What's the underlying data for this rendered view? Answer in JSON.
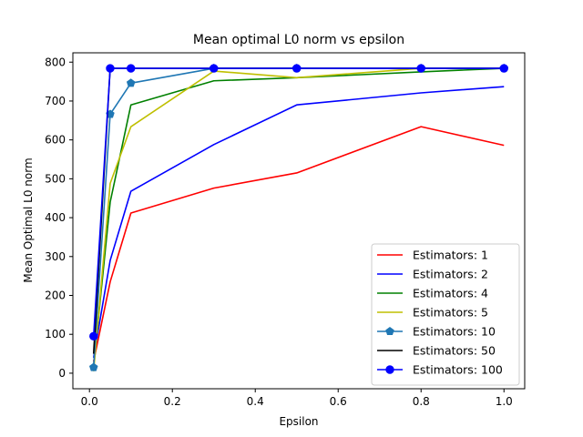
{
  "chart_data": {
    "type": "line",
    "title": "Mean optimal L0 norm vs epsilon",
    "xlabel": "Epsilon",
    "ylabel": "Mean Optimal L0 norm",
    "xlim": [
      -0.04,
      1.05
    ],
    "ylim": [
      -40,
      824
    ],
    "xticks": [
      0.0,
      0.2,
      0.4,
      0.6,
      0.8,
      1.0
    ],
    "xtick_labels": [
      "0.0",
      "0.2",
      "0.4",
      "0.6",
      "0.8",
      "1.0"
    ],
    "yticks": [
      0,
      100,
      200,
      300,
      400,
      500,
      600,
      700,
      800
    ],
    "ytick_labels": [
      "0",
      "100",
      "200",
      "300",
      "400",
      "500",
      "600",
      "700",
      "800"
    ],
    "grid": false,
    "legend_position": "lower-right",
    "x": [
      0.01,
      0.05,
      0.1,
      0.3,
      0.5,
      0.8,
      1.0
    ],
    "series": [
      {
        "name": "Estimators: 1",
        "color": "#ff0000",
        "marker": "none",
        "values": [
          30,
          235,
          412,
          476,
          515,
          634,
          586
        ]
      },
      {
        "name": "Estimators: 2",
        "color": "#0000ff",
        "marker": "none",
        "values": [
          40,
          290,
          468,
          588,
          690,
          721,
          737
        ]
      },
      {
        "name": "Estimators: 4",
        "color": "#008000",
        "marker": "none",
        "values": [
          20,
          440,
          690,
          752,
          760,
          775,
          784
        ]
      },
      {
        "name": "Estimators: 5",
        "color": "#bfbf00",
        "marker": "none",
        "values": [
          5,
          488,
          634,
          777,
          760,
          784,
          784
        ]
      },
      {
        "name": "Estimators: 10",
        "color": "#1f77b4",
        "marker": "pentagon",
        "values": [
          15,
          666,
          746,
          784,
          784,
          784,
          784
        ]
      },
      {
        "name": "Estimators: 50",
        "color": "#000000",
        "marker": "none",
        "values": [
          50,
          784,
          784,
          784,
          784,
          784,
          784
        ]
      },
      {
        "name": "Estimators: 100",
        "color": "#0000ff",
        "marker": "circle",
        "values": [
          95,
          784,
          784,
          784,
          784,
          784,
          784
        ]
      }
    ]
  }
}
